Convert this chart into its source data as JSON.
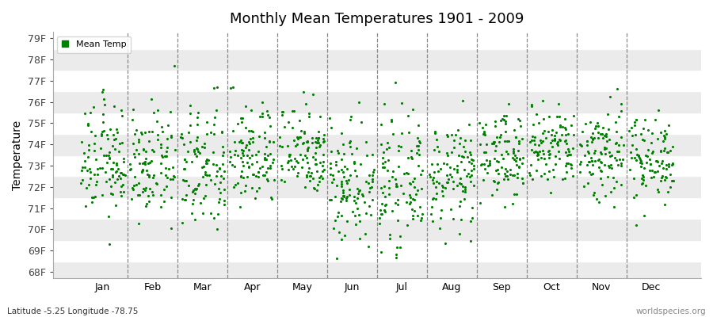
{
  "title": "Monthly Mean Temperatures 1901 - 2009",
  "ylabel": "Temperature",
  "y_tick_labels": [
    "68F",
    "69F",
    "70F",
    "71F",
    "72F",
    "73F",
    "74F",
    "75F",
    "76F",
    "77F",
    "78F",
    "79F"
  ],
  "y_tick_values": [
    68,
    69,
    70,
    71,
    72,
    73,
    74,
    75,
    76,
    77,
    78,
    79
  ],
  "ylim": [
    67.7,
    79.3
  ],
  "xlim": [
    -0.5,
    12.5
  ],
  "months": [
    "Jan",
    "Feb",
    "Mar",
    "Apr",
    "May",
    "Jun",
    "Jul",
    "Aug",
    "Sep",
    "Oct",
    "Nov",
    "Dec"
  ],
  "x_tick_positions": [
    0.5,
    1.5,
    2.5,
    3.5,
    4.5,
    5.5,
    6.5,
    7.5,
    8.5,
    9.5,
    10.5,
    11.5
  ],
  "vline_positions": [
    1,
    2,
    3,
    4,
    5,
    6,
    7,
    8,
    9,
    10,
    11
  ],
  "dot_color": "#008000",
  "dot_size": 5,
  "legend_label": "Mean Temp",
  "legend_marker_color": "#008000",
  "background_color": "#ffffff",
  "band_color_light": "#ffffff",
  "band_color_dark": "#ebebeb",
  "subtitle_left": "Latitude -5.25 Longitude -78.75",
  "subtitle_right": "worldspecies.org",
  "n_years": 109,
  "monthly_mean": [
    73.2,
    73.0,
    72.8,
    73.5,
    73.8,
    72.3,
    72.2,
    72.5,
    73.5,
    73.8,
    73.6,
    73.4
  ],
  "monthly_std": [
    1.3,
    1.2,
    1.5,
    1.2,
    1.1,
    1.5,
    1.4,
    1.2,
    1.0,
    1.0,
    1.2,
    1.0
  ],
  "hband_colors": [
    "#ffffff",
    "#ebebeb",
    "#ffffff",
    "#ebebeb",
    "#ffffff",
    "#ebebeb",
    "#ffffff",
    "#ebebeb",
    "#ffffff",
    "#ebebeb",
    "#ffffff",
    "#ebebeb"
  ]
}
